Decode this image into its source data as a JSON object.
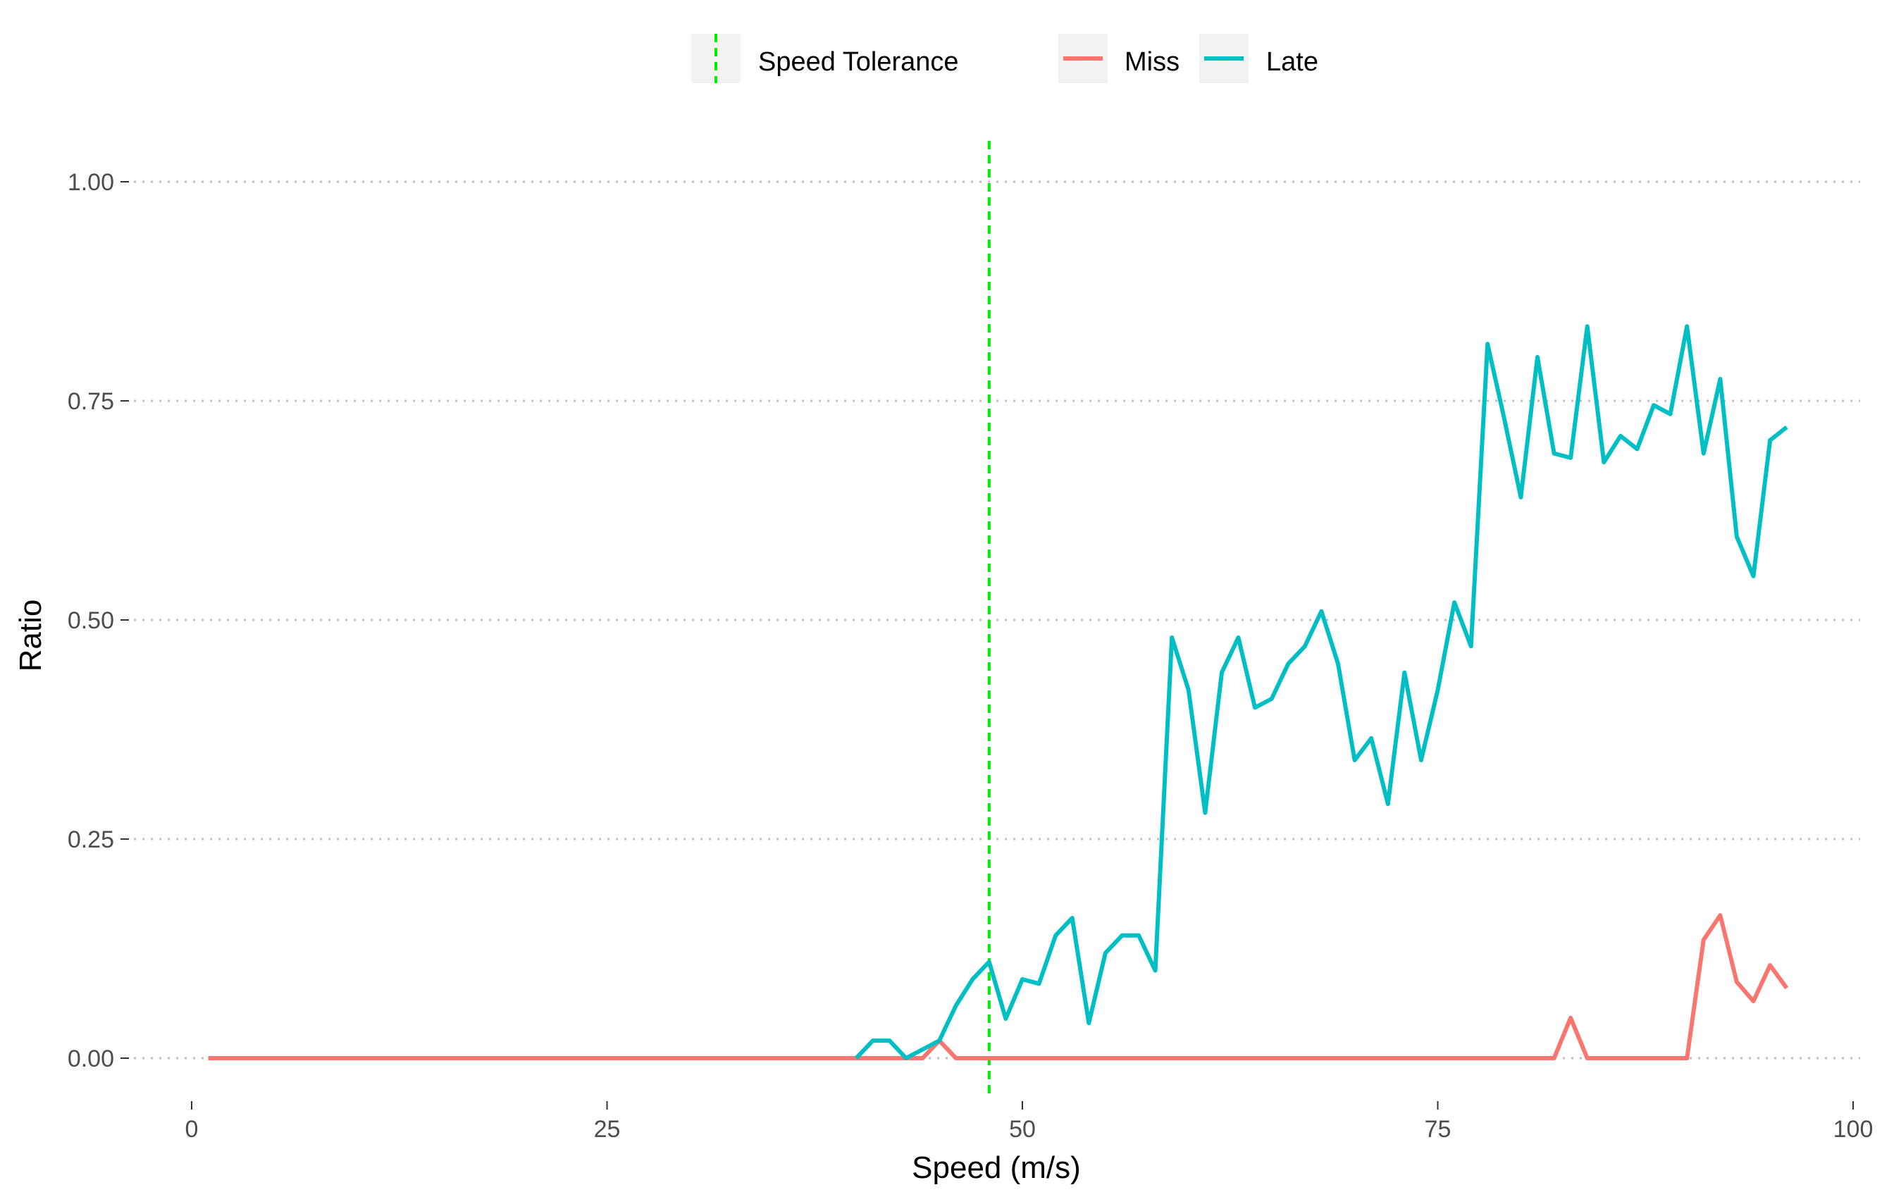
{
  "chart_data": {
    "type": "line",
    "xlabel": "Speed (m/s)",
    "ylabel": "Ratio",
    "xlim": [
      0,
      100
    ],
    "ylim": [
      0,
      1.0
    ],
    "x_ticks": [
      0,
      25,
      50,
      75,
      100
    ],
    "x_tick_labels": [
      "0",
      "25",
      "50",
      "75",
      "100"
    ],
    "y_ticks": [
      0,
      0.25,
      0.5,
      0.75,
      1.0
    ],
    "y_tick_labels": [
      "0.00",
      "0.25",
      "0.50",
      "0.75",
      "1.00"
    ],
    "grid": "horizontal dotted",
    "legend_position": "top",
    "vline": {
      "name": "Speed Tolerance",
      "x": 48,
      "color": "#00ee00",
      "style": "dashed"
    },
    "series": [
      {
        "name": "Miss",
        "color": "#f8766d",
        "x": [
          1,
          44,
          45,
          46,
          82,
          83,
          84,
          90,
          91,
          92,
          93,
          94,
          95,
          96
        ],
        "y": [
          0,
          0,
          0.02,
          0,
          0,
          0.046,
          0,
          0,
          0.135,
          0.163,
          0.087,
          0.065,
          0.106,
          0.08
        ]
      },
      {
        "name": "Late",
        "color": "#00bfc4",
        "x": [
          40,
          41,
          42,
          43,
          45,
          46,
          47,
          48,
          49,
          50,
          51,
          52,
          53,
          54,
          55,
          56,
          57,
          58,
          59,
          60,
          61,
          62,
          63,
          64,
          65,
          66,
          67,
          68,
          69,
          70,
          71,
          72,
          73,
          74,
          75,
          76,
          77,
          78,
          79,
          80,
          81,
          82,
          83,
          84,
          85,
          86,
          87,
          88,
          89,
          90,
          91,
          92,
          93,
          94,
          95,
          96
        ],
        "y": [
          0,
          0.02,
          0.02,
          0,
          0.02,
          0.06,
          0.09,
          0.11,
          0.045,
          0.09,
          0.085,
          0.14,
          0.16,
          0.04,
          0.12,
          0.14,
          0.14,
          0.1,
          0.48,
          0.42,
          0.28,
          0.44,
          0.48,
          0.4,
          0.41,
          0.45,
          0.47,
          0.51,
          0.45,
          0.34,
          0.365,
          0.29,
          0.44,
          0.34,
          0.42,
          0.52,
          0.47,
          0.815,
          0.73,
          0.64,
          0.8,
          0.69,
          0.685,
          0.835,
          0.68,
          0.71,
          0.695,
          0.745,
          0.735,
          0.835,
          0.69,
          0.775,
          0.595,
          0.55,
          0.705,
          0.72
        ]
      }
    ]
  }
}
